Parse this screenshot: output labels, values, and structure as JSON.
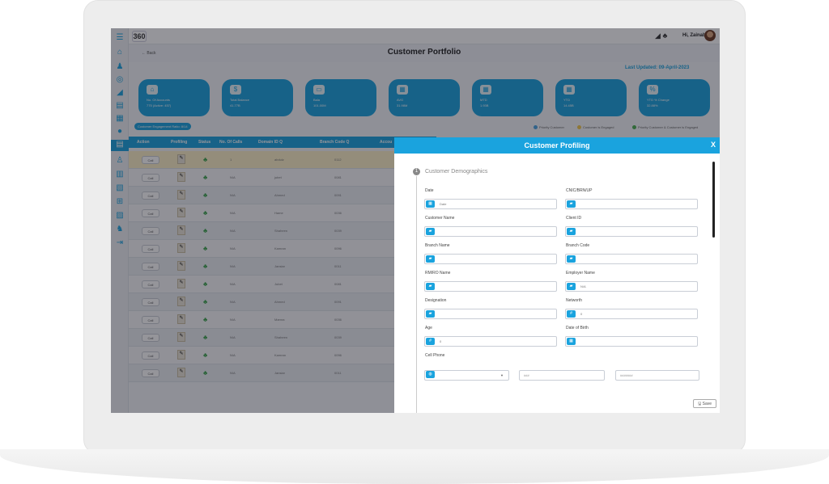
{
  "topbar": {
    "logo": "360",
    "greeting": "Hi, Zainab"
  },
  "header": {
    "back": "← Back",
    "title": "Customer Portfolio",
    "last_updated": "Last Updated: 09-April-2023"
  },
  "kpis": [
    {
      "label": "No. Of Accounts",
      "value": "775 (Active: 457)"
    },
    {
      "label": "Total Balance",
      "value": "41.77B"
    },
    {
      "label": "Bala",
      "value": "101.00M"
    },
    {
      "label": "AVG",
      "value": "31.98M"
    },
    {
      "label": "MTD",
      "value": "1.93B"
    },
    {
      "label": "YTD",
      "value": "14.45B"
    },
    {
      "label": "YTD % Change",
      "value": "32.88%"
    }
  ],
  "engagement_tag": "Customer Engagement Ratio: 8/14",
  "legend": [
    "Priority Customer",
    "Customer is Engaged",
    "Priority Customer & Customer is Engaged"
  ],
  "table": {
    "headers": [
      "Action",
      "Profiling",
      "Status",
      "No. Of Calls",
      "Domain ID Q",
      "Branch Code Q",
      "Accou"
    ],
    "call_label": "Call",
    "rows": [
      {
        "calls": "1",
        "domain": "abdulz",
        "branch": "0112"
      },
      {
        "calls": "N/A",
        "domain": "jubet",
        "branch": "0081"
      },
      {
        "calls": "N/A",
        "domain": "Ahmed",
        "branch": "0091"
      },
      {
        "calls": "N/A",
        "domain": "Hame",
        "branch": "0036"
      },
      {
        "calls": "N/A",
        "domain": "Shaheen",
        "branch": "0039"
      },
      {
        "calls": "N/A",
        "domain": "Kamran",
        "branch": "0096"
      },
      {
        "calls": "N/A",
        "domain": "Jansiar",
        "branch": "0011"
      },
      {
        "calls": "N/A",
        "domain": "Jubet",
        "branch": "0081"
      },
      {
        "calls": "N/A",
        "domain": "Ahmed",
        "branch": "0091"
      },
      {
        "calls": "N/A",
        "domain": "Mamra",
        "branch": "0036"
      },
      {
        "calls": "N/A",
        "domain": "Shaheen",
        "branch": "0039"
      },
      {
        "calls": "N/A",
        "domain": "Kamran",
        "branch": "0096"
      },
      {
        "calls": "N/A",
        "domain": "Jansiar",
        "branch": "0011"
      }
    ]
  },
  "panel": {
    "title": "Customer Profiling",
    "close": "X",
    "section_number": "1",
    "section_title": "Customer Demographics",
    "fields": {
      "date": {
        "label": "Date",
        "placeholder": "Date"
      },
      "cnic": {
        "label": "CNIC/BRN/UP",
        "value": ""
      },
      "customer_name": {
        "label": "Customer Name",
        "value": ""
      },
      "client_id": {
        "label": "Client ID",
        "value": ""
      },
      "branch_name": {
        "label": "Branch Name",
        "value": ""
      },
      "branch_code": {
        "label": "Branch Code",
        "value": ""
      },
      "rm_ro_name": {
        "label": "RM/RO Name",
        "value": ""
      },
      "employer_name": {
        "label": "Employer Name",
        "value": "N/A"
      },
      "designation": {
        "label": "Designation",
        "value": ""
      },
      "networth": {
        "label": "Networth",
        "value": "0"
      },
      "age": {
        "label": "Age",
        "value": "0"
      },
      "dob": {
        "label": "Date of Birth",
        "value": ""
      },
      "cell_phone": {
        "label": "Cell Phone",
        "code": "###",
        "number": "#######"
      }
    },
    "save": "🖫 Save"
  },
  "colors": {
    "accent": "#1aa3de",
    "highlight_row": "#fdf1c6"
  }
}
